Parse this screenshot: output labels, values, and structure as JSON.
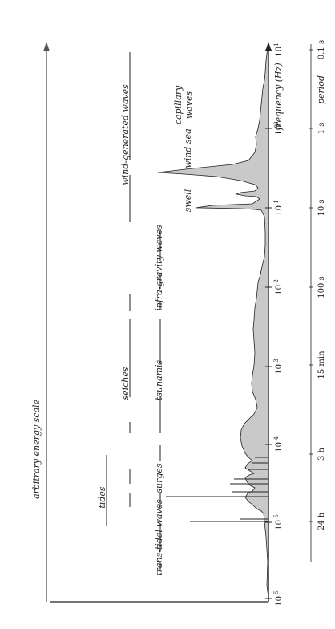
{
  "figure": {
    "energy_axis_label": "arbitrary energy scale",
    "frequency_axis_label": "frequency (Hz)",
    "period_axis_label": "period",
    "frequency_ticks": [
      {
        "base": "10",
        "exp": "-5"
      },
      {
        "base": "10",
        "exp": "-4"
      },
      {
        "base": "10",
        "exp": "-3"
      },
      {
        "base": "10",
        "exp": "-2"
      },
      {
        "base": "10",
        "exp": "-1"
      },
      {
        "base": "10",
        "exp": "0"
      },
      {
        "base": "10",
        "exp": "1"
      }
    ],
    "period_ticks": [
      "24 h",
      "3 h",
      "15 min",
      "100 s",
      "10 s",
      "1 s",
      "0.1 s"
    ],
    "wave_classes": [
      {
        "label": "trans-tidal waves"
      },
      {
        "label": "tides"
      },
      {
        "label": "surges"
      },
      {
        "label": "seiches"
      },
      {
        "label": "tsunamis"
      },
      {
        "label": "infra-gravity waves"
      },
      {
        "label": "wind-generated waves"
      }
    ],
    "peak_labels": {
      "swell": "swell",
      "wind_sea": "wind sea",
      "capillary_line1": "capillary",
      "capillary_line2": "waves"
    },
    "colors": {
      "spectrum_fill": "#c9c9c9",
      "line": "#222222"
    }
  }
}
